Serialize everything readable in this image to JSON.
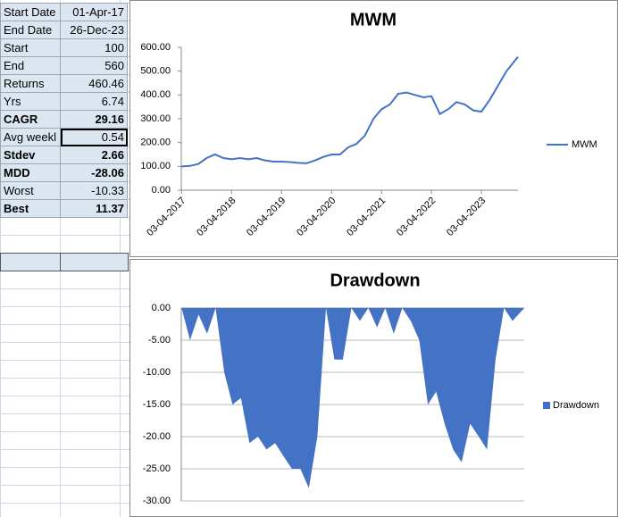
{
  "table": {
    "rows": [
      [
        "Start Date",
        "01-Apr-17"
      ],
      [
        "End Date",
        "26-Dec-23"
      ],
      [
        "Start",
        100
      ],
      [
        "End",
        560
      ],
      [
        "Returns",
        460.46
      ],
      [
        "Yrs",
        6.74
      ],
      [
        "CAGR",
        29.16
      ],
      [
        "Avg weekl",
        0.54
      ],
      [
        "Stdev",
        2.66
      ],
      [
        "MDD",
        -28.06
      ],
      [
        "Worst",
        -10.33
      ],
      [
        "Best",
        11.37
      ]
    ]
  },
  "chart_data": [
    {
      "type": "line",
      "title": "MWM",
      "grid": false,
      "legend": "right",
      "x": [
        "03-04-2017",
        "03-06-2017",
        "03-08-2017",
        "03-10-2017",
        "03-12-2017",
        "03-02-2018",
        "03-04-2018",
        "03-06-2018",
        "03-08-2018",
        "03-10-2018",
        "03-12-2018",
        "03-02-2019",
        "03-04-2019",
        "03-06-2019",
        "03-08-2019",
        "03-10-2019",
        "03-12-2019",
        "03-02-2020",
        "03-04-2020",
        "03-06-2020",
        "03-08-2020",
        "03-10-2020",
        "03-12-2020",
        "03-02-2021",
        "03-04-2021",
        "03-06-2021",
        "03-08-2021",
        "03-10-2021",
        "03-12-2021",
        "03-02-2022",
        "03-04-2022",
        "03-06-2022",
        "03-08-2022",
        "03-10-2022",
        "03-12-2022",
        "03-02-2023",
        "03-04-2023",
        "03-06-2023",
        "03-08-2023",
        "03-10-2023",
        "26-12-2023"
      ],
      "series": [
        {
          "name": "MWM",
          "color": "#4472c4",
          "values": [
            100,
            102,
            110,
            135,
            150,
            135,
            130,
            135,
            130,
            135,
            125,
            120,
            120,
            118,
            115,
            113,
            125,
            140,
            150,
            150,
            180,
            195,
            230,
            300,
            340,
            360,
            405,
            410,
            400,
            390,
            395,
            320,
            340,
            370,
            360,
            335,
            330,
            380,
            440,
            500,
            560
          ]
        }
      ],
      "xlim": [
        "01-04-2017",
        "26-12-2023"
      ],
      "xticks": [
        "03-04-2017",
        "03-04-2018",
        "03-04-2019",
        "03-04-2020",
        "03-04-2021",
        "03-04-2022",
        "03-04-2023"
      ],
      "ylim": [
        0,
        600
      ],
      "yticks": [
        {
          "value": 0,
          "label": "0.00"
        },
        {
          "value": 100,
          "label": "100.00"
        },
        {
          "value": 200,
          "label": "200.00"
        },
        {
          "value": 300,
          "label": "300.00"
        },
        {
          "value": 400,
          "label": "400.00"
        },
        {
          "value": 500,
          "label": "500.00"
        },
        {
          "value": 600,
          "label": "600.00"
        }
      ]
    },
    {
      "type": "area",
      "title": "Drawdown",
      "grid": true,
      "legend": "right",
      "x": [
        "03-04-2017",
        "03-06-2017",
        "03-08-2017",
        "03-10-2017",
        "03-12-2017",
        "03-02-2018",
        "03-04-2018",
        "03-06-2018",
        "03-08-2018",
        "03-10-2018",
        "03-12-2018",
        "03-02-2019",
        "03-04-2019",
        "03-06-2019",
        "03-08-2019",
        "03-10-2019",
        "03-12-2019",
        "03-02-2020",
        "03-04-2020",
        "03-06-2020",
        "03-08-2020",
        "03-10-2020",
        "03-12-2020",
        "03-02-2021",
        "03-04-2021",
        "03-06-2021",
        "03-08-2021",
        "03-10-2021",
        "03-12-2021",
        "03-02-2022",
        "03-04-2022",
        "03-06-2022",
        "03-08-2022",
        "03-10-2022",
        "03-12-2022",
        "03-02-2023",
        "03-04-2023",
        "03-06-2023",
        "03-08-2023",
        "03-10-2023",
        "26-12-2023"
      ],
      "series": [
        {
          "name": "Drawdown",
          "color": "#4472c4",
          "values": [
            0,
            -5,
            -1,
            -4,
            0,
            -10,
            -15,
            -14,
            -21,
            -20,
            -22,
            -21,
            -23,
            -25,
            -25,
            -28,
            -20,
            0,
            -8,
            -8,
            0,
            -2,
            0,
            -3,
            0,
            -4,
            0,
            -2,
            -5,
            -15,
            -13,
            -18,
            -22,
            -24,
            -18,
            -20,
            -22,
            -8,
            0,
            -2,
            0
          ]
        }
      ],
      "xlim": [
        "01-04-2017",
        "26-12-2023"
      ],
      "ylim": [
        -30,
        0
      ],
      "yticks": [
        {
          "value": 0,
          "label": "0.00"
        },
        {
          "value": -5,
          "label": "-5.00"
        },
        {
          "value": -10,
          "label": "-10.00"
        },
        {
          "value": -15,
          "label": "-15.00"
        },
        {
          "value": -20,
          "label": "-20.00"
        },
        {
          "value": -25,
          "label": "-25.00"
        },
        {
          "value": -30,
          "label": "-30.00"
        }
      ]
    }
  ]
}
